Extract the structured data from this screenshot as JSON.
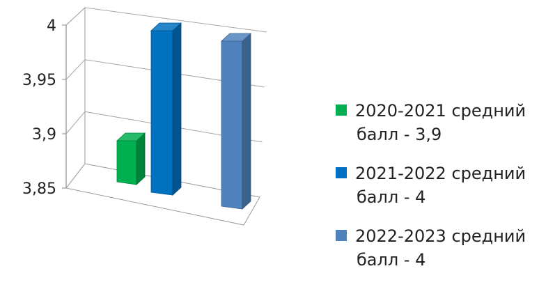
{
  "chart_data": {
    "type": "bar",
    "title": "",
    "xlabel": "",
    "ylabel": "",
    "ylim": [
      3.85,
      4
    ],
    "y_ticks": [
      "3,85",
      "3,9",
      "3,95",
      "4"
    ],
    "y_tick_values": [
      3.85,
      3.9,
      3.95,
      4
    ],
    "grid": true,
    "style": "3d-perspective",
    "legend_position": "right",
    "series": [
      {
        "name": "2020-2021 средний балл - 3,9",
        "name_lines": [
          "2020-2021 средний",
          "балл - 3,9"
        ],
        "value": 3.9,
        "color": "#00b050"
      },
      {
        "name": "2021-2022 средний балл - 4",
        "name_lines": [
          "2021-2022 средний",
          "балл - 4"
        ],
        "value": 4,
        "color": "#0070c0"
      },
      {
        "name": "2022-2023 средний балл - 4",
        "name_lines": [
          "2022-2023 средний",
          "балл - 4"
        ],
        "value": 4,
        "color": "#4f81bd"
      }
    ]
  }
}
